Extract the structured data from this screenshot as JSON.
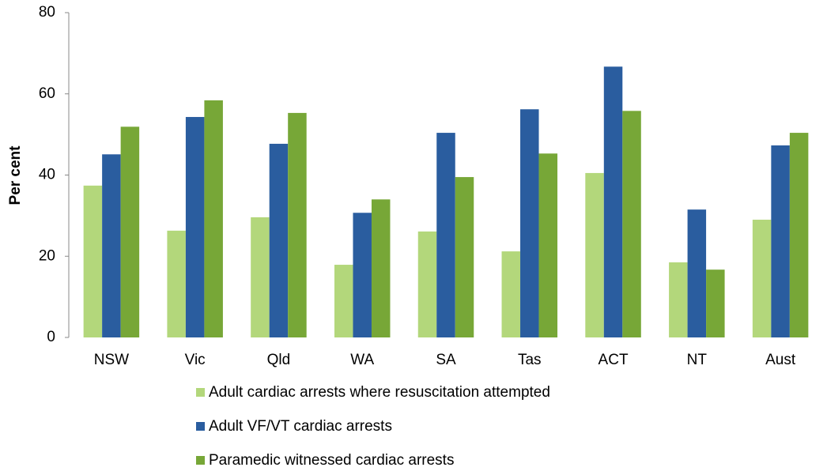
{
  "chart_data": {
    "type": "bar",
    "y_label": "Per cent",
    "categories": [
      "NSW",
      "Vic",
      "Qld",
      "WA",
      "SA",
      "Tas",
      "ACT",
      "NT",
      "Aust"
    ],
    "series": [
      {
        "name": "Adult cardiac arrests where resuscitation attempted",
        "color": "#b3d77b",
        "values": [
          37.4,
          26.3,
          29.6,
          17.9,
          26.1,
          21.2,
          40.5,
          18.5,
          29.0
        ]
      },
      {
        "name": "Adult VF/VT cardiac arrests",
        "color": "#2a5d9f",
        "values": [
          45.1,
          54.3,
          47.7,
          30.7,
          50.4,
          56.2,
          66.7,
          31.5,
          47.3
        ]
      },
      {
        "name": "Paramedic witnessed cardiac arrests",
        "color": "#77a737",
        "values": [
          51.9,
          58.4,
          55.3,
          34.0,
          39.5,
          45.3,
          55.8,
          16.7,
          50.4
        ]
      }
    ],
    "ylim": [
      0,
      80
    ],
    "yticks": [
      0,
      20,
      40,
      60,
      80
    ],
    "grid": false,
    "legend": "bottom"
  }
}
